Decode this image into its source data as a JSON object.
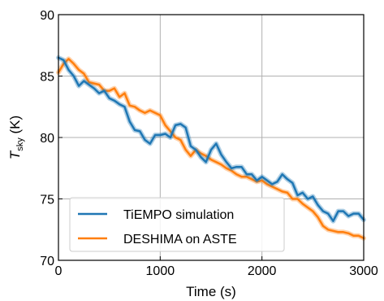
{
  "chart_data": {
    "type": "line",
    "xlabel": "Time (s)",
    "ylabel_main": "T",
    "ylabel_sub": "sky",
    "ylabel_unit": " (K)",
    "xlim": [
      0,
      3000
    ],
    "ylim": [
      70,
      90
    ],
    "xticks": [
      0,
      1000,
      2000,
      3000
    ],
    "yticks": [
      70,
      75,
      80,
      85,
      90
    ],
    "xtick_labels": [
      "0",
      "1000",
      "2000",
      "3000"
    ],
    "ytick_labels": [
      "70",
      "75",
      "80",
      "85",
      "90"
    ],
    "grid": true,
    "legend_position": "bottom-left",
    "series": [
      {
        "name": "TiEMPO simulation",
        "color": "#1f77b4",
        "x": [
          0,
          50,
          100,
          150,
          200,
          250,
          300,
          350,
          400,
          450,
          500,
          550,
          600,
          650,
          700,
          750,
          800,
          850,
          900,
          950,
          1000,
          1050,
          1100,
          1150,
          1200,
          1250,
          1300,
          1350,
          1400,
          1450,
          1500,
          1550,
          1600,
          1650,
          1700,
          1750,
          1800,
          1850,
          1900,
          1950,
          2000,
          2050,
          2100,
          2150,
          2200,
          2250,
          2300,
          2350,
          2400,
          2450,
          2500,
          2550,
          2600,
          2650,
          2700,
          2750,
          2800,
          2850,
          2900,
          2950,
          3000
        ],
        "y": [
          86.5,
          86.3,
          85.5,
          85.0,
          84.2,
          84.6,
          84.3,
          84.0,
          83.6,
          83.8,
          83.2,
          83.0,
          82.7,
          82.5,
          81.3,
          80.6,
          80.5,
          79.8,
          79.5,
          80.2,
          80.2,
          80.3,
          80.0,
          81.0,
          81.1,
          80.8,
          79.3,
          79.0,
          78.4,
          78.0,
          79.0,
          79.5,
          78.6,
          78.0,
          77.5,
          77.6,
          77.6,
          77.0,
          77.0,
          76.5,
          76.8,
          76.5,
          76.2,
          76.4,
          77.0,
          76.6,
          76.3,
          75.3,
          75.5,
          75.0,
          75.2,
          74.5,
          74.0,
          73.8,
          73.2,
          74.0,
          74.0,
          73.6,
          73.8,
          73.8,
          73.3
        ]
      },
      {
        "name": "DESHIMA on ASTE",
        "color": "#ff7f0e",
        "x": [
          0,
          50,
          100,
          150,
          200,
          250,
          300,
          350,
          400,
          450,
          500,
          550,
          600,
          650,
          700,
          750,
          800,
          850,
          900,
          950,
          1000,
          1050,
          1100,
          1150,
          1200,
          1250,
          1300,
          1350,
          1400,
          1450,
          1500,
          1550,
          1600,
          1650,
          1700,
          1750,
          1800,
          1850,
          1900,
          1950,
          2000,
          2050,
          2100,
          2150,
          2200,
          2250,
          2300,
          2350,
          2400,
          2450,
          2500,
          2550,
          2600,
          2650,
          2700,
          2750,
          2800,
          2850,
          2900,
          2950,
          3000
        ],
        "y": [
          85.3,
          86.0,
          86.4,
          86.0,
          85.5,
          85.2,
          84.5,
          84.4,
          84.3,
          83.8,
          83.8,
          84.0,
          83.3,
          83.6,
          82.6,
          82.5,
          82.2,
          82.0,
          82.2,
          82.0,
          81.8,
          81.0,
          80.5,
          80.0,
          79.8,
          79.0,
          78.5,
          79.0,
          78.7,
          78.5,
          78.2,
          78.0,
          77.8,
          77.5,
          77.3,
          77.0,
          76.8,
          76.8,
          76.6,
          76.4,
          76.5,
          76.2,
          76.0,
          75.8,
          75.6,
          75.5,
          75.0,
          75.0,
          74.6,
          74.3,
          74.0,
          73.5,
          72.8,
          72.5,
          72.4,
          72.3,
          72.3,
          72.2,
          72.0,
          72.0,
          71.8
        ]
      }
    ]
  }
}
